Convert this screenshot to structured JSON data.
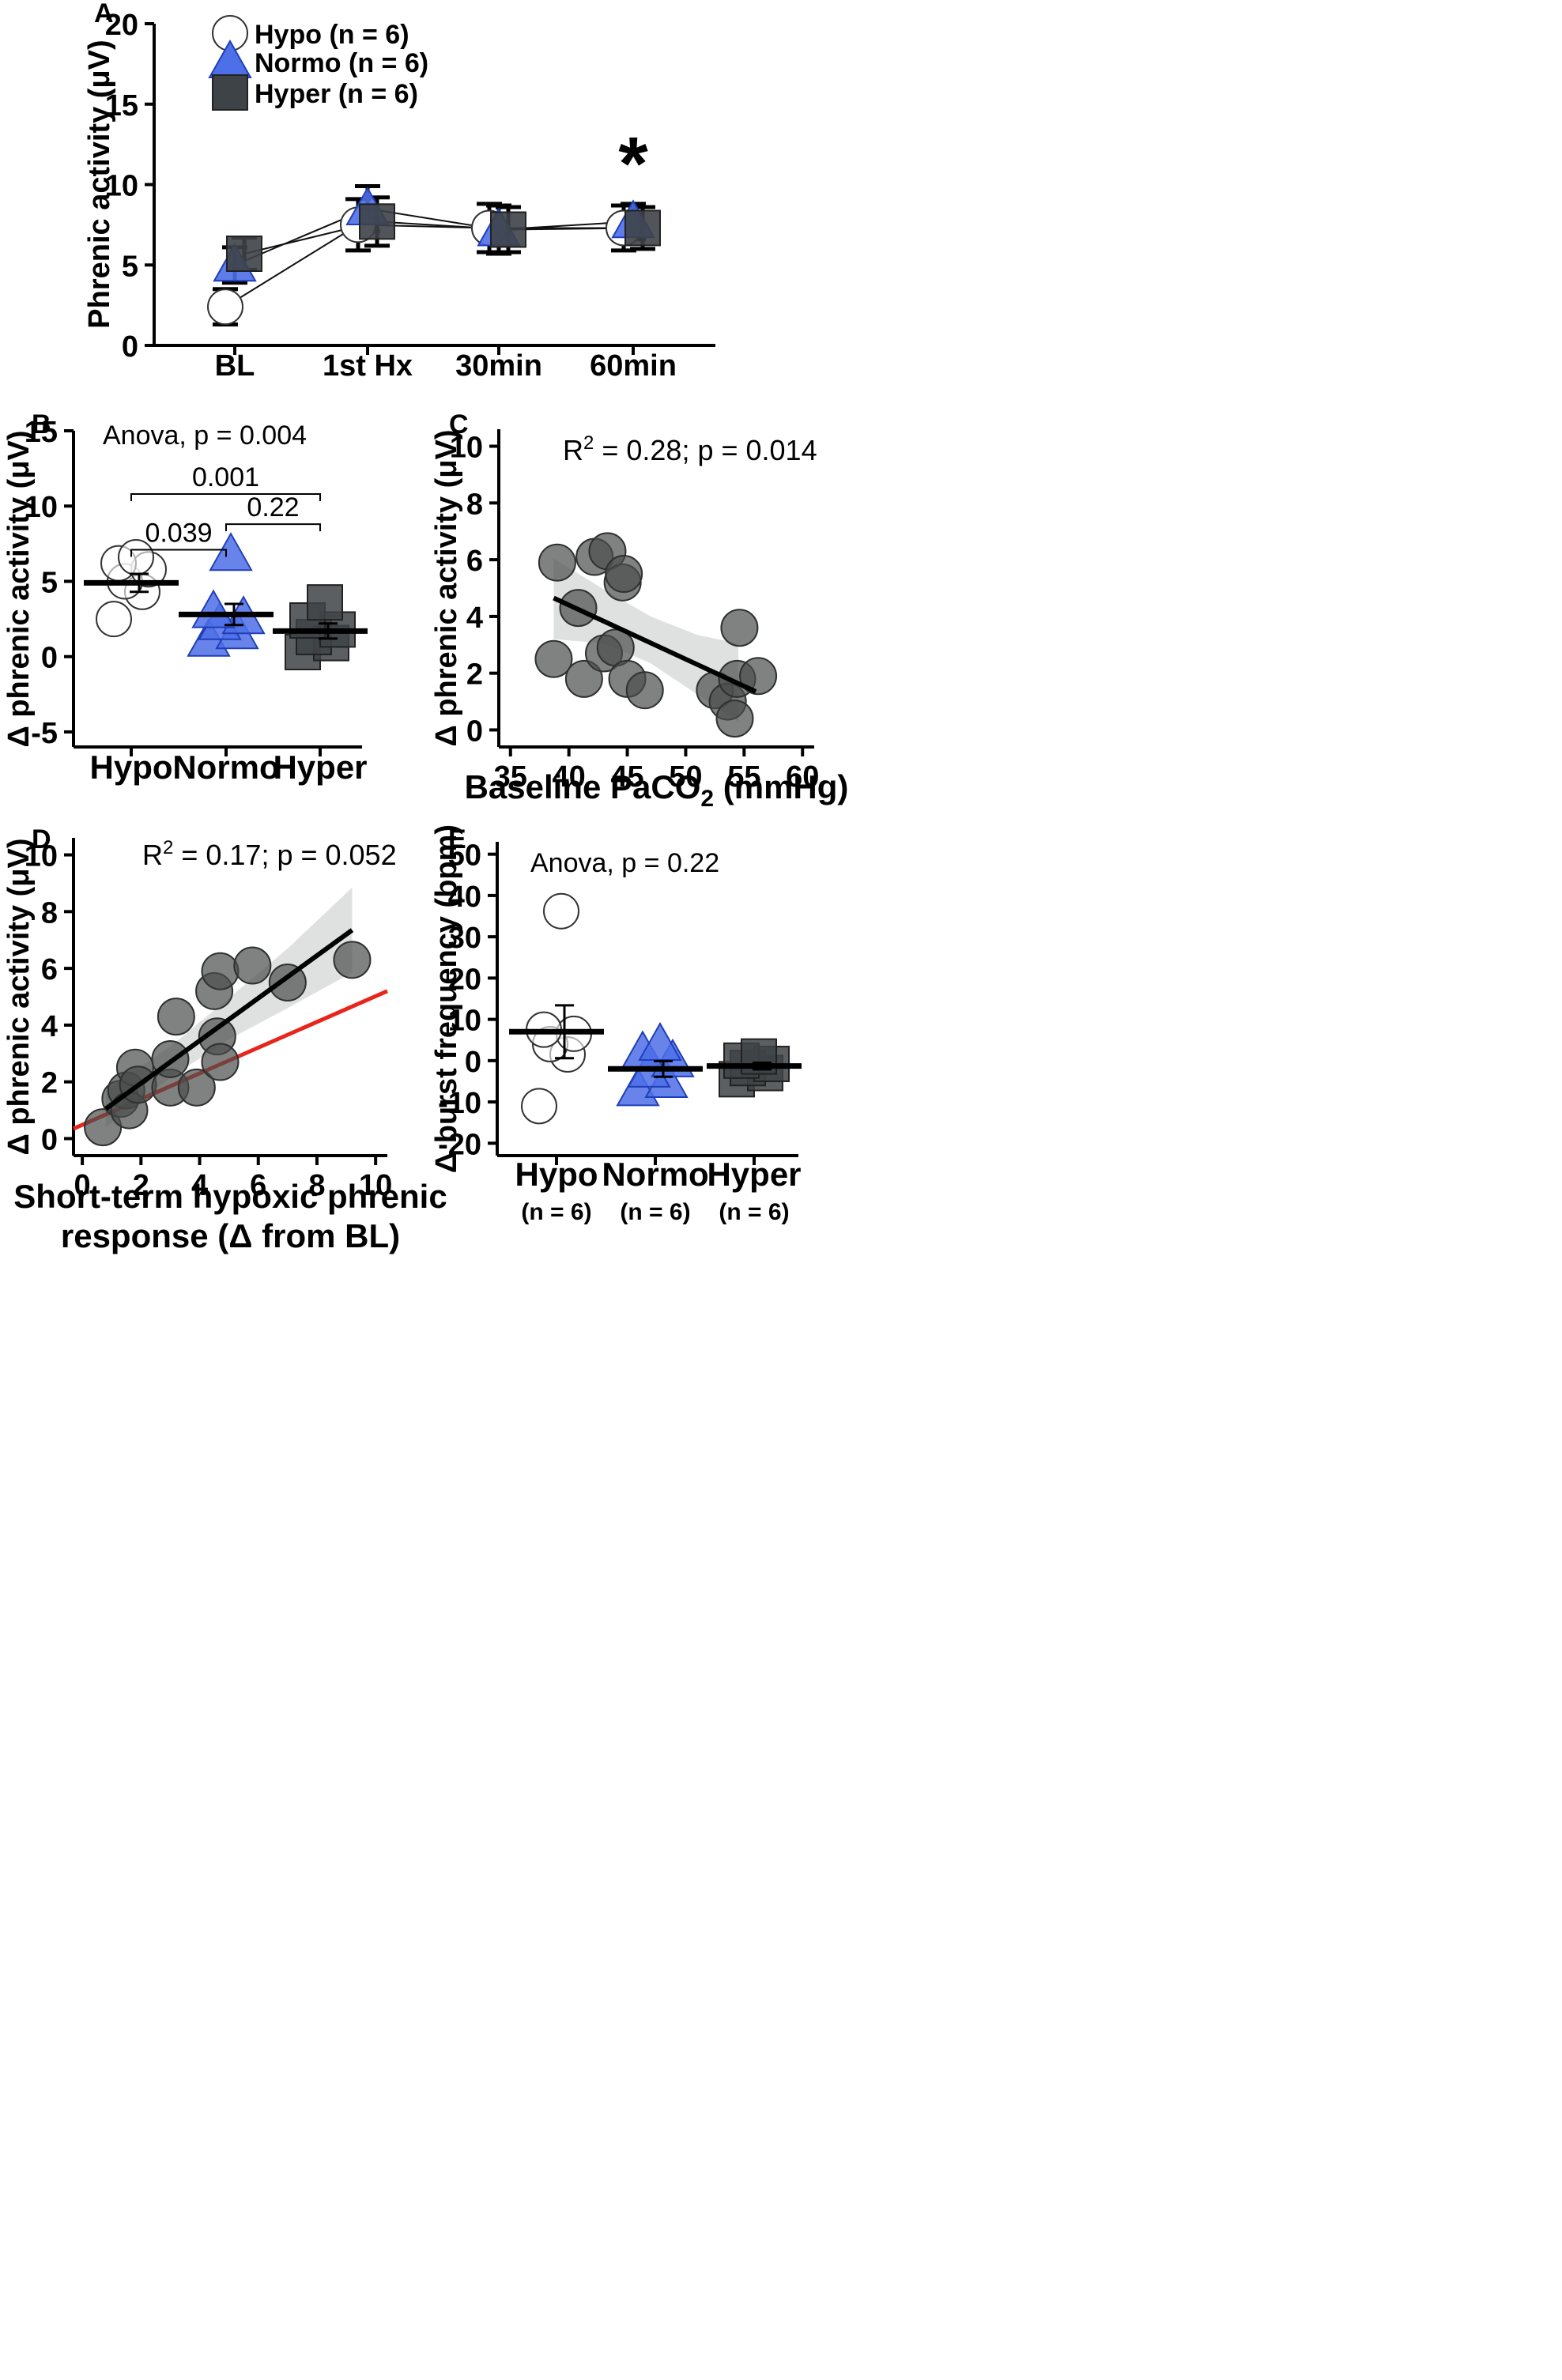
{
  "chart_data": [
    {
      "panel": "A",
      "type": "line",
      "ylabel": "Phrenic activity (μV)",
      "ylim": [
        0,
        20
      ],
      "yticks": [
        "0",
        "5",
        "10",
        "15",
        "20"
      ],
      "categories": [
        "BL",
        "1st Hx",
        "30min",
        "60min"
      ],
      "annotation": "*",
      "series": [
        {
          "name": "Hypo (n = 6)",
          "marker": "circle",
          "color": "#ffffff",
          "values": [
            2.4,
            7.5,
            7.3,
            7.3
          ],
          "err": [
            1.1,
            1.6,
            1.5,
            1.4
          ]
        },
        {
          "name": "Normo (n = 6)",
          "marker": "triangle",
          "color": "#4d6fe8",
          "values": [
            5.0,
            8.5,
            7.2,
            7.7
          ],
          "err": [
            1.1,
            1.4,
            1.5,
            1.1
          ]
        },
        {
          "name": "Hyper (n = 6)",
          "marker": "square",
          "color": "#3e4347",
          "values": [
            5.7,
            7.7,
            7.2,
            7.3
          ],
          "err": [
            1.0,
            1.5,
            1.4,
            1.3
          ]
        }
      ]
    },
    {
      "panel": "B",
      "type": "scatter",
      "ylabel": "Δ phrenic activity (μV)",
      "ylim": [
        -6,
        15
      ],
      "yticks": [
        "-5",
        "0",
        "5",
        "10",
        "15"
      ],
      "categories": [
        "Hypo",
        "Normo",
        "Hyper"
      ],
      "title": "Anova, p = 0.004",
      "groups": [
        {
          "name": "Hypo",
          "marker": "circle",
          "color": "#ffffff",
          "mean": 4.9,
          "sem": 0.6,
          "points": [
            2.5,
            4.3,
            5.0,
            5.8,
            6.2,
            6.6
          ]
        },
        {
          "name": "Normo",
          "marker": "triangle",
          "color": "#4d6fe8",
          "mean": 2.8,
          "sem": 0.7,
          "points": [
            1.1,
            1.6,
            2.2,
            2.6,
            3.0,
            6.8
          ]
        },
        {
          "name": "Hyper",
          "marker": "square",
          "color": "#3e4347",
          "mean": 1.7,
          "sem": 0.5,
          "points": [
            0.3,
            0.9,
            1.3,
            1.8,
            2.4,
            3.6
          ]
        }
      ],
      "comparisons": [
        {
          "a": 0,
          "b": 2,
          "y": 10.8,
          "label": "0.001"
        },
        {
          "a": 1,
          "b": 2,
          "y": 8.8,
          "label": "0.22"
        },
        {
          "a": 0,
          "b": 1,
          "y": 7.1,
          "label": "0.039"
        }
      ]
    },
    {
      "panel": "C",
      "type": "scatter",
      "xlabel": "Baseline PaCO",
      "xlabel_sub": "2",
      "xlabel_tail": " (mmHg)",
      "ylabel": "Δ phrenic activity (μV)",
      "xlim": [
        34,
        61
      ],
      "ylim": [
        -0.6,
        10.6
      ],
      "xticks": [
        "35",
        "40",
        "45",
        "50",
        "55",
        "60"
      ],
      "yticks": [
        "0",
        "2",
        "4",
        "6",
        "8",
        "10"
      ],
      "title_lhs": "R",
      "title_sup": "2",
      "title_rhs": " = 0.28; p = 0.014",
      "fit": {
        "x0": 38.7,
        "y0": 4.65,
        "x1": 56.0,
        "y1": 1.35
      },
      "points": [
        [
          38.7,
          2.5
        ],
        [
          39.0,
          5.9
        ],
        [
          40.8,
          4.3
        ],
        [
          41.3,
          1.8
        ],
        [
          42.2,
          6.1
        ],
        [
          43.0,
          2.7
        ],
        [
          43.3,
          6.3
        ],
        [
          44.0,
          2.9
        ],
        [
          44.6,
          5.2
        ],
        [
          44.7,
          5.5
        ],
        [
          45.0,
          1.8
        ],
        [
          46.5,
          1.4
        ],
        [
          52.5,
          1.4
        ],
        [
          53.6,
          1.0
        ],
        [
          54.2,
          0.4
        ],
        [
          54.4,
          1.8
        ],
        [
          54.6,
          3.6
        ],
        [
          56.2,
          1.9
        ]
      ],
      "band_upper": [
        [
          38.7,
          6.05
        ],
        [
          43.0,
          4.95
        ],
        [
          47.0,
          4.0
        ],
        [
          51.0,
          3.35
        ],
        [
          54.5,
          3.05
        ]
      ],
      "band_lower": [
        [
          38.7,
          3.2
        ],
        [
          43.0,
          3.05
        ],
        [
          47.0,
          2.35
        ],
        [
          51.0,
          1.25
        ],
        [
          54.5,
          0.3
        ]
      ]
    },
    {
      "panel": "D",
      "type": "scatter",
      "xlabel": "Short-term hypoxic phrenic",
      "xlabel2": "response (Δ from BL)",
      "ylabel": "Δ phrenic activity (μV)",
      "xlim": [
        -0.3,
        10.4
      ],
      "ylim": [
        -0.6,
        10.6
      ],
      "xticks": [
        "0",
        "2",
        "4",
        "6",
        "8",
        "10"
      ],
      "yticks": [
        "0",
        "2",
        "4",
        "6",
        "8",
        "10"
      ],
      "title_lhs": "R",
      "title_sup": "2",
      "title_rhs": " = 0.17; p = 0.052",
      "fit": {
        "x0": 0.8,
        "y0": 1.05,
        "x1": 9.2,
        "y1": 7.35
      },
      "identity": {
        "x0": -0.3,
        "y0": 0.35,
        "x1": 10.4,
        "y1": 5.2
      },
      "identity_color": "#e8251b",
      "points": [
        [
          0.7,
          0.4
        ],
        [
          1.3,
          1.4
        ],
        [
          1.5,
          1.7
        ],
        [
          1.6,
          1.0
        ],
        [
          1.8,
          2.5
        ],
        [
          1.9,
          1.9
        ],
        [
          3.0,
          1.8
        ],
        [
          3.0,
          2.8
        ],
        [
          3.2,
          4.3
        ],
        [
          3.9,
          1.8
        ],
        [
          4.5,
          5.2
        ],
        [
          4.6,
          3.6
        ],
        [
          4.7,
          5.9
        ],
        [
          4.7,
          2.7
        ],
        [
          5.8,
          6.1
        ],
        [
          7.0,
          5.5
        ],
        [
          9.2,
          6.3
        ]
      ],
      "band_upper": [
        [
          0.8,
          1.7
        ],
        [
          3.0,
          3.25
        ],
        [
          5.0,
          4.95
        ],
        [
          7.0,
          6.7
        ],
        [
          9.2,
          8.85
        ]
      ],
      "band_lower": [
        [
          0.8,
          0.4
        ],
        [
          3.0,
          2.15
        ],
        [
          5.0,
          3.5
        ],
        [
          7.0,
          4.6
        ],
        [
          9.2,
          5.85
        ]
      ]
    },
    {
      "panel": "E",
      "type": "scatter",
      "ylabel": "Δ burst frequency (bpm)",
      "ylim": [
        -23,
        53
      ],
      "yticks": [
        "-20",
        "-10",
        "0",
        "10",
        "20",
        "30",
        "40",
        "50"
      ],
      "categories": [
        "Hypo",
        "Normo",
        "Hyper"
      ],
      "sublabels": [
        "(n = 6)",
        "(n = 6)",
        "(n = 6)"
      ],
      "title": "Anova, p = 0.22",
      "groups": [
        {
          "name": "Hypo",
          "marker": "circle",
          "color": "#ffffff",
          "mean": 7.0,
          "sem": 6.4,
          "points": [
            -11.0,
            1.5,
            4.0,
            6.5,
            7.5,
            36.2
          ]
        },
        {
          "name": "Normo",
          "marker": "triangle",
          "color": "#4d6fe8",
          "mean": -2.0,
          "sem": 1.9,
          "points": [
            -7.0,
            -5.0,
            -2.5,
            0.0,
            2.0,
            4.0
          ]
        },
        {
          "name": "Hyper",
          "marker": "square",
          "color": "#3e4347",
          "mean": -1.3,
          "sem": 0.8,
          "points": [
            -4.5,
            -3.0,
            -1.8,
            -0.8,
            0.0,
            1.0
          ]
        }
      ]
    }
  ],
  "panel_letters": [
    "A",
    "B",
    "C",
    "D",
    "E"
  ]
}
